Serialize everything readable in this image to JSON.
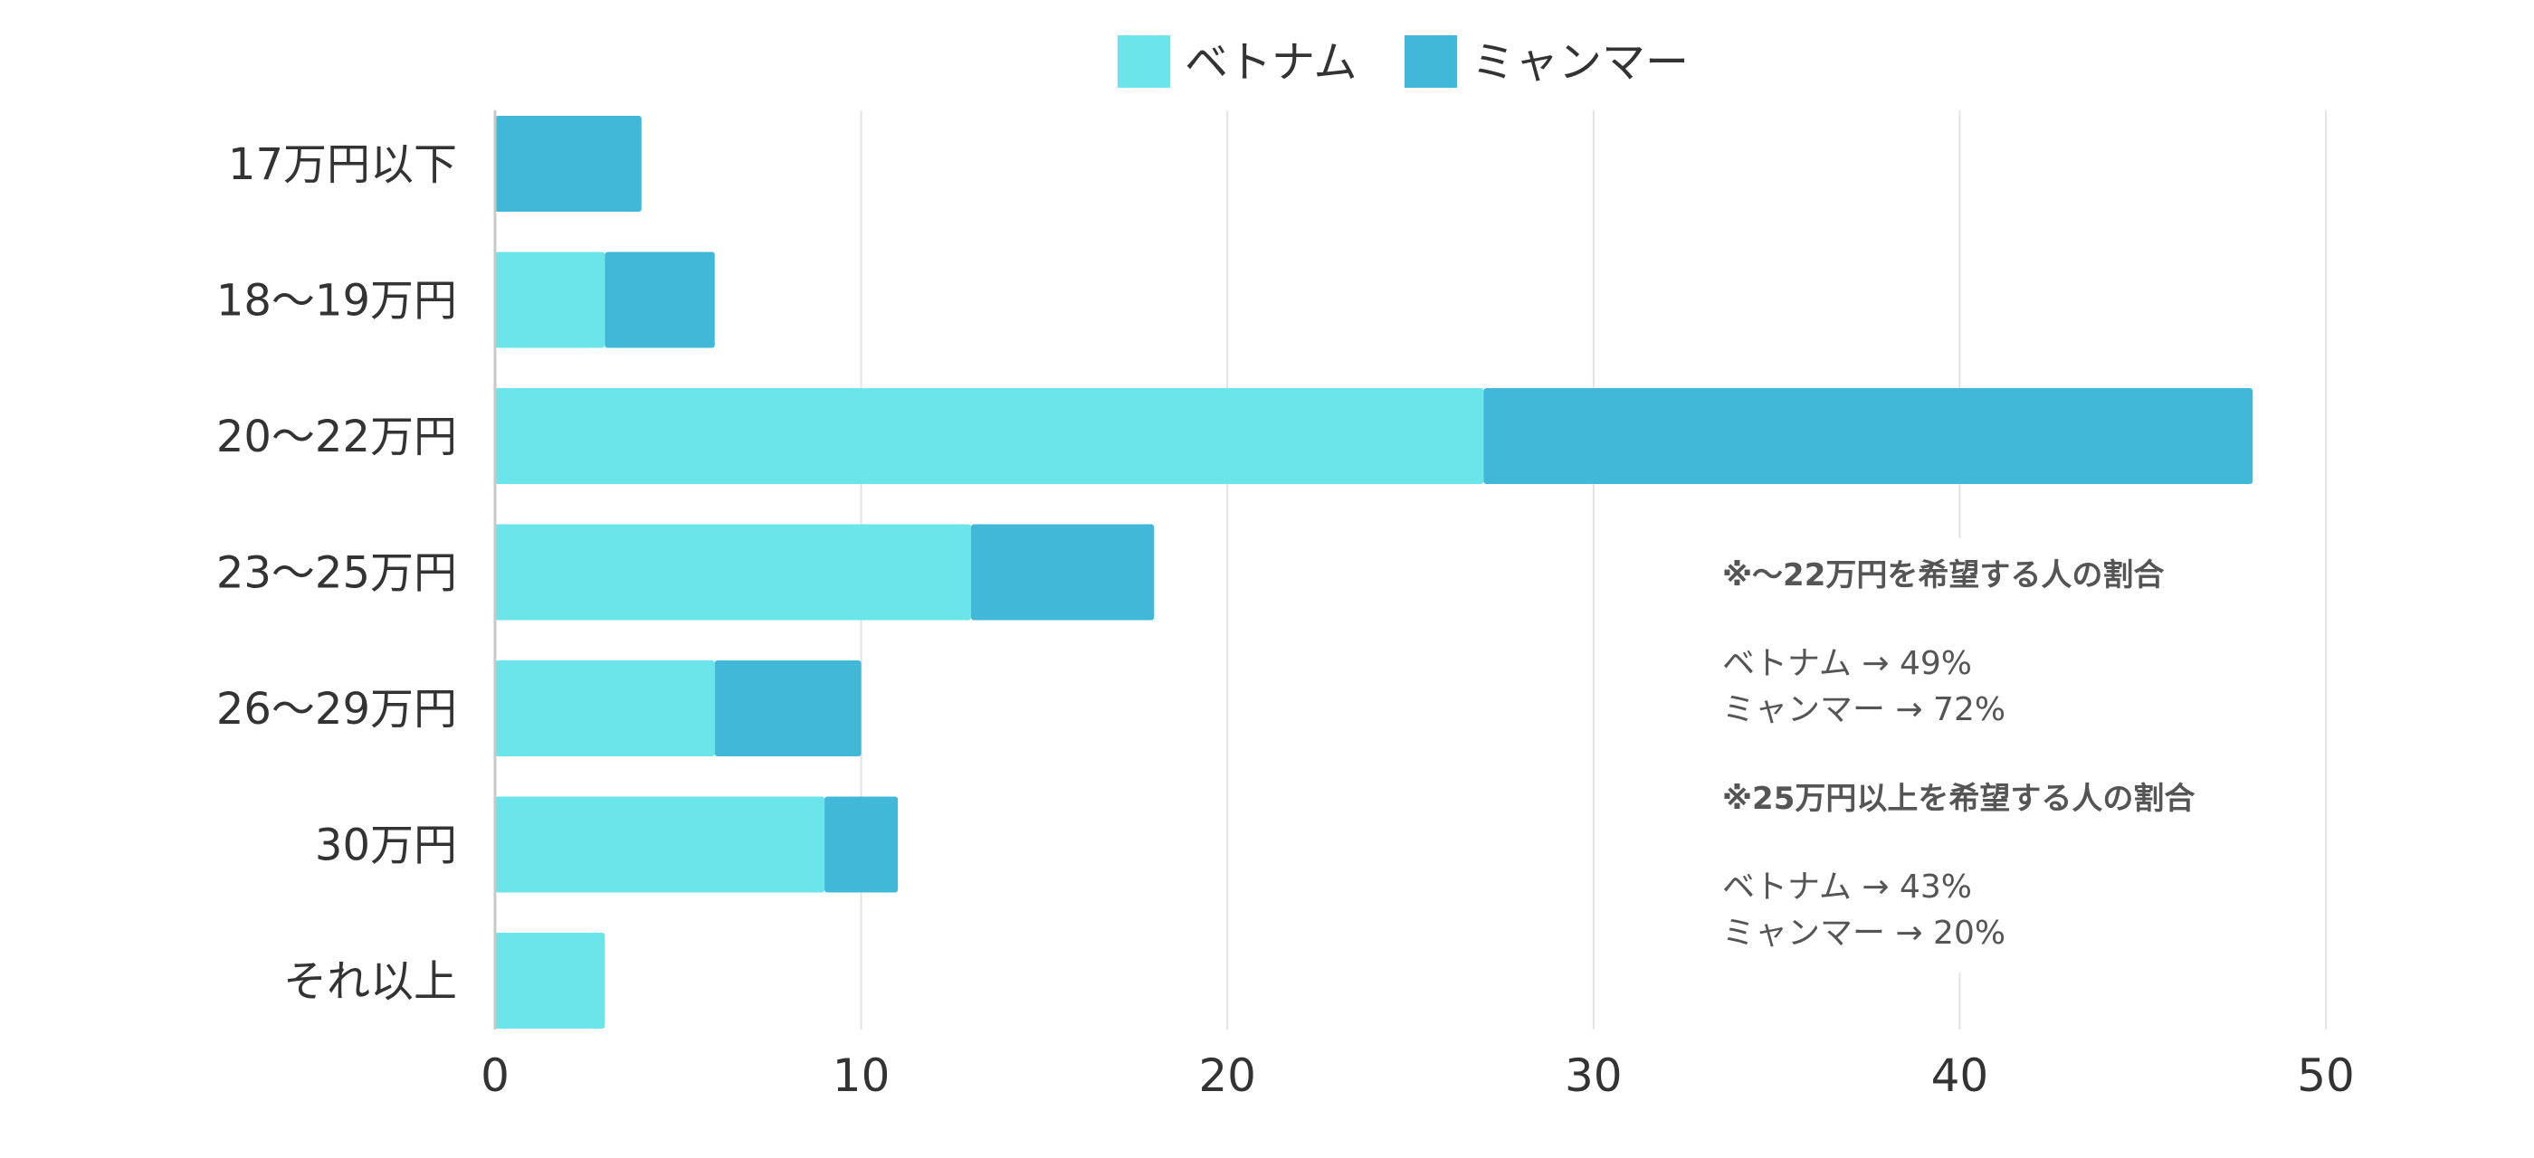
{
  "chart_data": {
    "type": "bar",
    "orientation": "horizontal",
    "stacked": true,
    "title": "",
    "xlabel": "",
    "ylabel": "",
    "categories": [
      "17万円以下",
      "18〜19万円",
      "20〜22万円",
      "23〜25万円",
      "26〜29万円",
      "30万円",
      "それ以上"
    ],
    "series": [
      {
        "name": "ベトナム",
        "color": "#6BE5EA",
        "values": [
          0,
          3,
          27,
          13,
          6,
          9,
          3
        ]
      },
      {
        "name": "ミャンマー",
        "color": "#42B8D8",
        "values": [
          4,
          3,
          21,
          5,
          4,
          2,
          0
        ]
      }
    ],
    "xlim": [
      0,
      50
    ],
    "xticks": [
      0,
      10,
      20,
      30,
      40,
      50
    ],
    "grid": true,
    "legend_position": "top-center",
    "annotations": [
      {
        "heading": "※〜22万円を希望する人の割合",
        "lines": [
          "ベトナム → 49%",
          "ミャンマー → 72%"
        ]
      },
      {
        "heading": "※25万円以上を希望する人の割合",
        "lines": [
          "ベトナム → 43%",
          "ミャンマー → 20%"
        ]
      }
    ]
  }
}
